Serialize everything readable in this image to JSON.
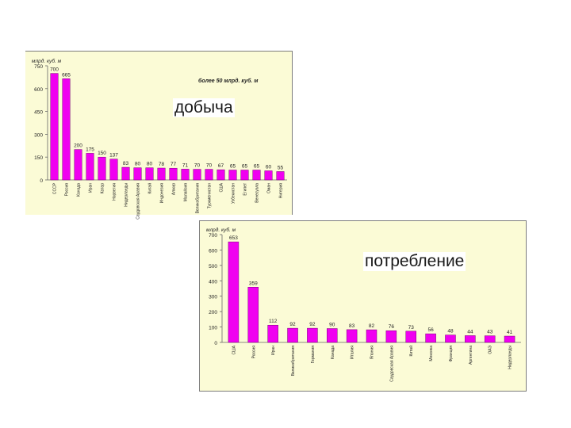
{
  "colors": {
    "bar": "#f000f0",
    "bar_stroke": "#7a007a",
    "panel_bg": "#fbfbd6",
    "text": "#222222"
  },
  "labels": {
    "production": "добыча",
    "consumption": "потребление",
    "note": "более 50 млрд. куб. м"
  },
  "chart_data": [
    {
      "type": "bar",
      "title": "добыча",
      "ylabel": "млрд. куб. м",
      "ylim": [
        0,
        750
      ],
      "yticks": [
        0,
        150,
        300,
        450,
        600,
        750
      ],
      "grid": false,
      "annotation": "более 50 млрд. куб. м",
      "categories": [
        "СССР",
        "Россия",
        "Канада",
        "Иран",
        "Катар",
        "Норвегия",
        "Нидерланды",
        "Саудовская Аравия",
        "Китай",
        "Индонезия",
        "Алжир",
        "Малайзия",
        "Великобритания",
        "Туркменистан",
        "США",
        "Узбекистан",
        "Египет",
        "Венесуэла",
        "Оман",
        "Нигерия"
      ],
      "values": [
        700,
        665,
        200,
        175,
        150,
        137,
        83,
        80,
        80,
        78,
        77,
        71,
        70,
        70,
        67,
        65,
        65,
        65,
        60,
        55
      ]
    },
    {
      "type": "bar",
      "title": "потребление",
      "ylabel": "млрд. куб. м",
      "ylim": [
        0,
        700
      ],
      "yticks": [
        0,
        100,
        200,
        300,
        400,
        500,
        600,
        700
      ],
      "grid": false,
      "categories": [
        "США",
        "Россия",
        "Иран",
        "Великобритания",
        "Германия",
        "Канада",
        "Италия",
        "Япония",
        "Саудовская Аравия",
        "Китай",
        "Мексика",
        "Франция",
        "Аргентина",
        "ОАЭ",
        "Нидерланды"
      ],
      "values": [
        653,
        359,
        112,
        92,
        92,
        90,
        83,
        82,
        76,
        73,
        56,
        48,
        44,
        43,
        41
      ]
    }
  ]
}
